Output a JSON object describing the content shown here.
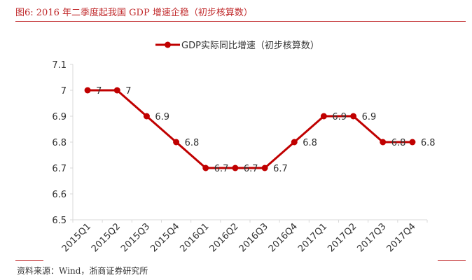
{
  "figure": {
    "title": "图6:   2016 年二季度起我国 GDP 增速企稳（初步核算数）",
    "source": "资料来源：Wind，浙商证券研究所"
  },
  "colors": {
    "series": "#c00000",
    "accent": "#c0282a",
    "axis": "#d9d9d9",
    "text": "#333333"
  },
  "chart_data": {
    "type": "line",
    "title": "",
    "xlabel": "",
    "ylabel": "",
    "categories": [
      "2015Q1",
      "2015Q2",
      "2015Q3",
      "2015Q4",
      "2016Q1",
      "2016Q2",
      "2016Q3",
      "2016Q4",
      "2017Q1",
      "2017Q2",
      "2017Q3",
      "2017Q4"
    ],
    "series": [
      {
        "name": "GDP实际同比增速（初步核算数）",
        "values": [
          7,
          7,
          6.9,
          6.8,
          6.7,
          6.7,
          6.7,
          6.8,
          6.9,
          6.9,
          6.8,
          6.8
        ]
      }
    ],
    "ylim": [
      6.5,
      7.1
    ],
    "yticks": [
      6.5,
      6.6,
      6.7,
      6.8,
      6.9,
      7,
      7.1
    ],
    "legend": "top-center",
    "grid": false,
    "data_labels": true
  }
}
